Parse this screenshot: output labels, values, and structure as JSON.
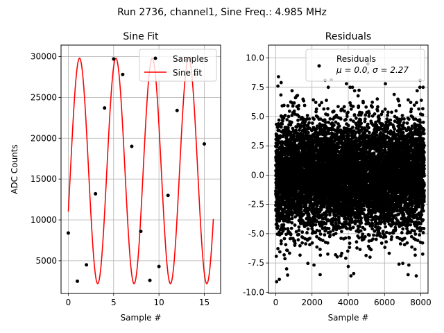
{
  "suptitle": "Run 2736, channel1, Sine Freq.: 4.985 MHz",
  "chart_data": [
    {
      "type": "line",
      "title": "Sine Fit",
      "xlabel": "Sample #",
      "ylabel": "ADC Counts",
      "xlim": [
        -0.8,
        16.8
      ],
      "ylim": [
        1000,
        31400
      ],
      "xticks": [
        0,
        5,
        10,
        15
      ],
      "yticks": [
        5000,
        10000,
        15000,
        20000,
        25000,
        30000
      ],
      "grid": true,
      "legend_position": "top-right",
      "series": [
        {
          "name": "Samples",
          "style": "points",
          "color": "#000000",
          "x": [
            0,
            1,
            2,
            3,
            4,
            5,
            6,
            7,
            8,
            9,
            10,
            11,
            12,
            13,
            14,
            15
          ],
          "y": [
            8400,
            2500,
            4500,
            13200,
            23700,
            29700,
            27800,
            19000,
            8600,
            2600,
            4300,
            13000,
            23400,
            29500,
            27800,
            19300
          ]
        },
        {
          "name": "Sine fit",
          "style": "line",
          "color": "#ff0000",
          "model": {
            "offset": 16000,
            "amplitude": 13800,
            "period": 4.0115,
            "peak_at": 5.25
          },
          "x_range": [
            0,
            16
          ]
        }
      ]
    },
    {
      "type": "scatter",
      "title": "Residuals",
      "xlabel": "Sample #",
      "ylabel": "",
      "xlim": [
        -400,
        8400
      ],
      "ylim": [
        -10.1,
        11.1
      ],
      "xticks": [
        0,
        2000,
        4000,
        6000,
        8000
      ],
      "yticks": [
        -10.0,
        -7.5,
        -5.0,
        -2.5,
        0.0,
        2.5,
        5.0,
        7.5,
        10.0
      ],
      "grid": true,
      "legend_position": "top-right",
      "series": [
        {
          "name": "Residuals",
          "legend_line2": "μ = 0.0, σ = 2.27",
          "color": "#000000",
          "points": 8192,
          "mean": 0.0,
          "std": 2.27,
          "outliers": [
            [
              150,
              8.4
            ],
            [
              300,
              7.9
            ],
            [
              120,
              7.6
            ],
            [
              900,
              7.2
            ],
            [
              50,
              -9.1
            ],
            [
              200,
              -8.9
            ],
            [
              600,
              -8.0
            ],
            [
              3900,
              7.8
            ],
            [
              4100,
              7.5
            ],
            [
              4350,
              7.2
            ],
            [
              2450,
              -8.5
            ],
            [
              4150,
              -8.6
            ],
            [
              4300,
              -8.4
            ],
            [
              6050,
              7.8
            ],
            [
              7950,
              7.5
            ],
            [
              7800,
              7.2
            ],
            [
              7300,
              -8.5
            ],
            [
              7750,
              -8.6
            ],
            [
              4000,
              -7.8
            ],
            [
              6800,
              -7.6
            ],
            [
              1200,
              6.8
            ],
            [
              5600,
              6.5
            ],
            [
              3300,
              -6.8
            ],
            [
              5200,
              -7.0
            ]
          ]
        }
      ]
    }
  ]
}
